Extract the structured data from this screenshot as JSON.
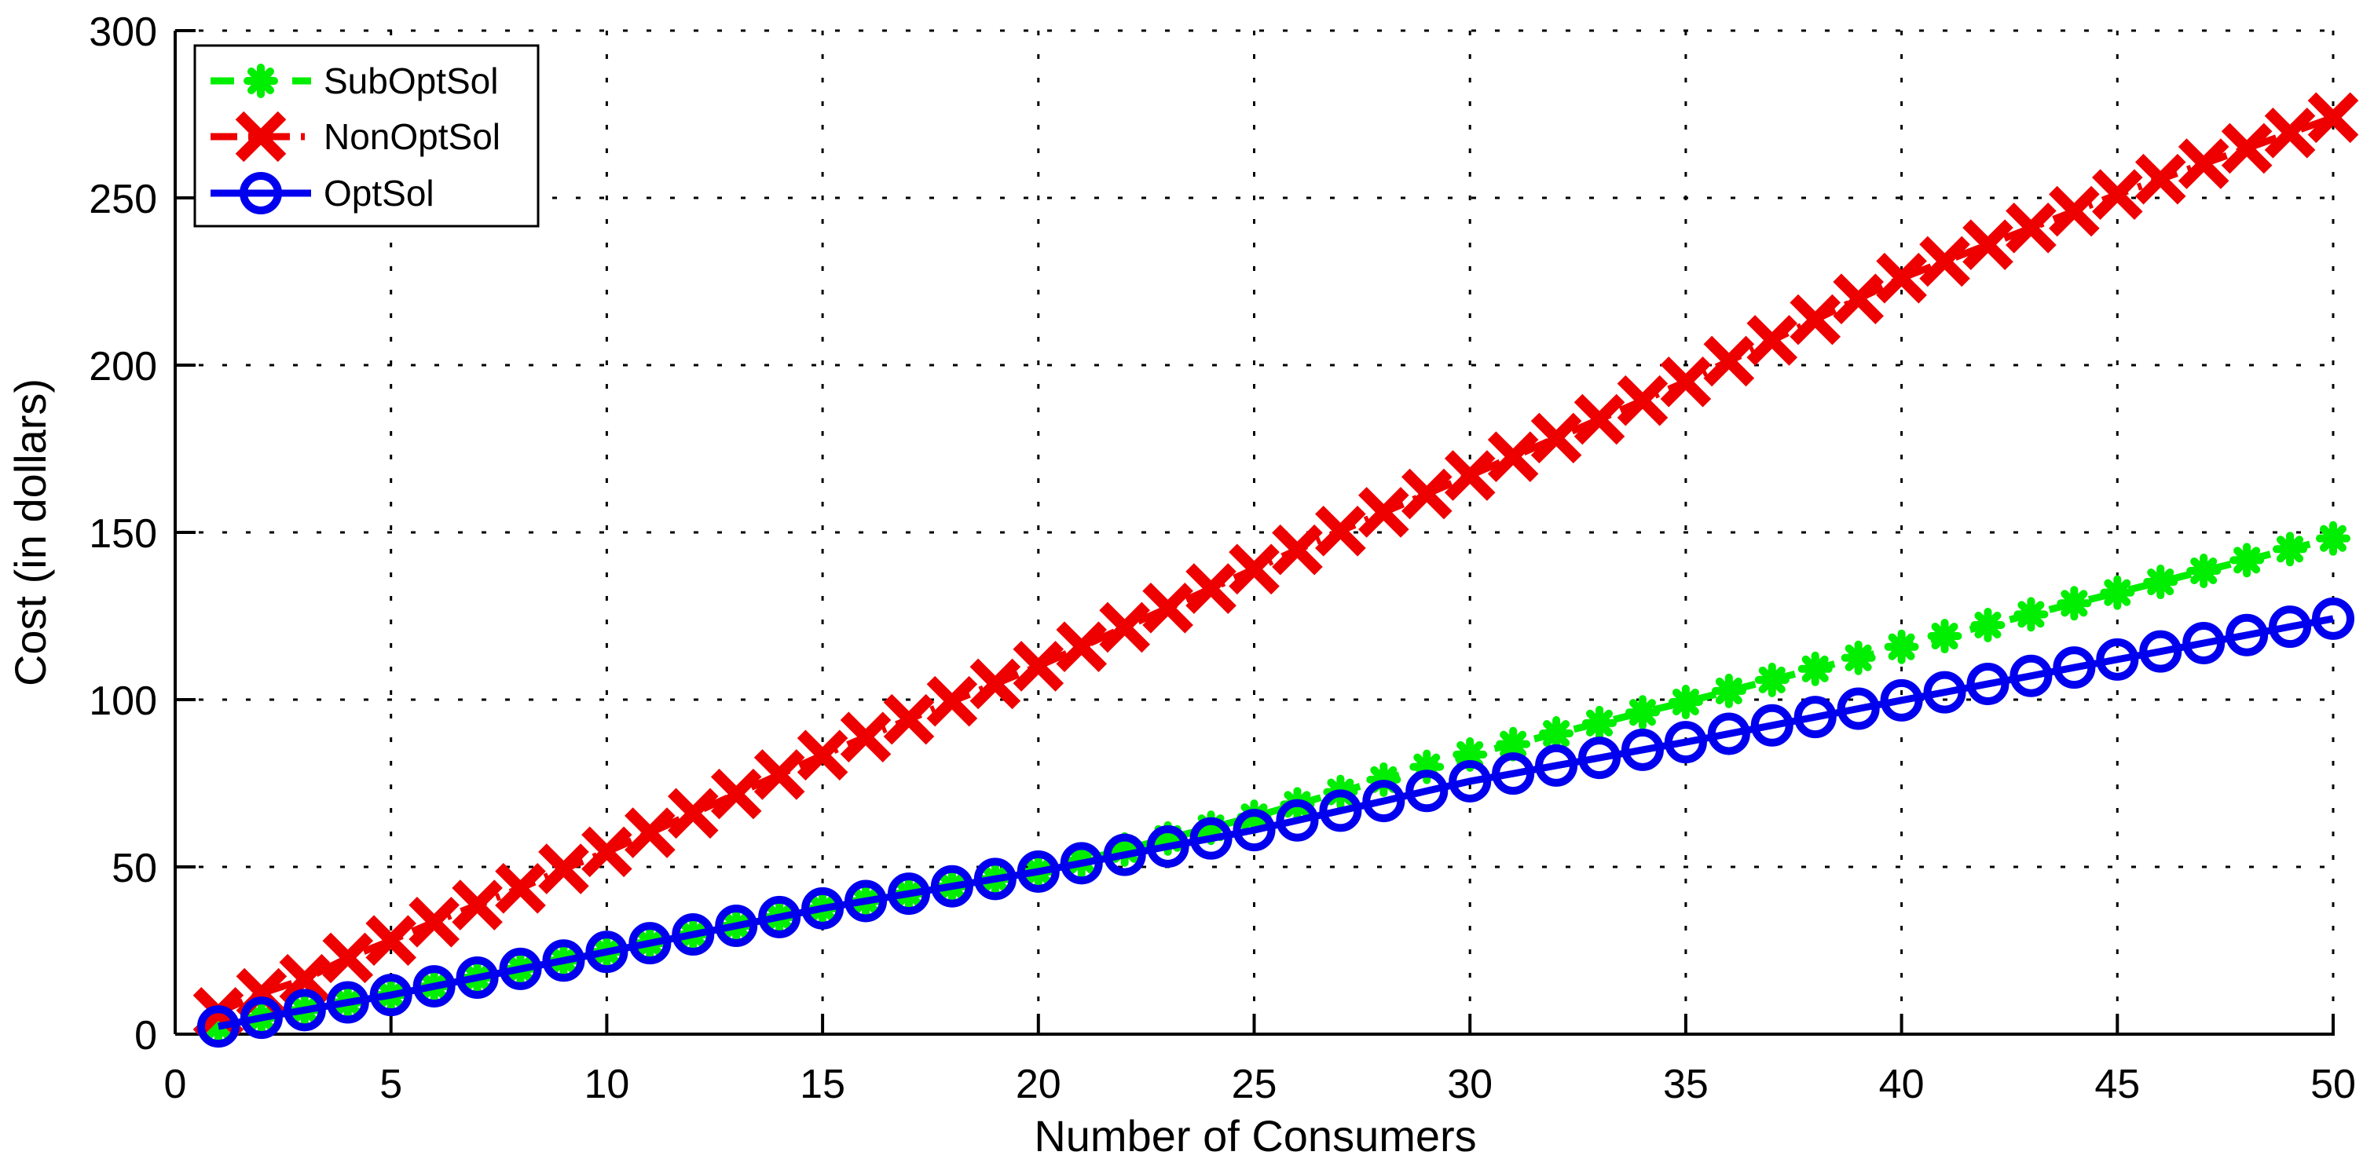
{
  "figure": {
    "background": "#ffffff",
    "axis_color": "#000000",
    "grid_color": "#000000"
  },
  "chart_data": {
    "type": "line",
    "title": "",
    "xlabel": "Number of Consumers",
    "ylabel": "Cost (in dollars)",
    "xlim": [
      0,
      50
    ],
    "ylim": [
      0,
      300
    ],
    "xticks": [
      0,
      5,
      10,
      15,
      20,
      25,
      30,
      35,
      40,
      45,
      50
    ],
    "yticks": [
      0,
      50,
      100,
      150,
      200,
      250,
      300
    ],
    "grid": true,
    "grid_style": "dotted",
    "legend_position": "top-left",
    "x": [
      1,
      2,
      3,
      4,
      5,
      6,
      7,
      8,
      9,
      10,
      11,
      12,
      13,
      14,
      15,
      16,
      17,
      18,
      19,
      20,
      21,
      22,
      23,
      24,
      25,
      26,
      27,
      28,
      29,
      30,
      31,
      32,
      33,
      34,
      35,
      36,
      37,
      38,
      39,
      40,
      41,
      42,
      43,
      44,
      45,
      46,
      47,
      48,
      49,
      50
    ],
    "series": [
      {
        "name": "SubOptSol",
        "color": "#00ee00",
        "line_style": "dashed",
        "marker": "asterisk",
        "values": [
          2.3,
          4.9,
          7.2,
          9.5,
          11.7,
          14.3,
          16.9,
          19.5,
          22.0,
          24.6,
          27.2,
          29.8,
          32.4,
          35.0,
          37.6,
          39.8,
          42.0,
          44.2,
          46.4,
          48.6,
          51.9,
          55.2,
          58.5,
          61.7,
          65.0,
          68.7,
          72.4,
          76.1,
          79.9,
          83.6,
          86.7,
          89.9,
          93.0,
          96.2,
          99.3,
          102.6,
          105.9,
          109.2,
          112.5,
          115.8,
          119.0,
          122.3,
          125.5,
          128.8,
          132.0,
          135.2,
          138.5,
          141.7,
          145.0,
          148.2
        ]
      },
      {
        "name": "NonOptSol",
        "color": "#ee0000",
        "line_style": "dashdot",
        "marker": "x",
        "values": [
          6.5,
          12.2,
          16.4,
          22.8,
          28.0,
          33.5,
          38.6,
          43.6,
          49.4,
          54.5,
          60.2,
          66.0,
          71.8,
          77.6,
          83.4,
          88.8,
          94.1,
          99.5,
          104.7,
          110.0,
          115.8,
          121.6,
          127.4,
          133.2,
          139.0,
          144.8,
          150.4,
          156.0,
          161.5,
          167.0,
          172.6,
          178.2,
          183.8,
          189.4,
          195.0,
          201.2,
          207.4,
          213.6,
          219.8,
          226.0,
          231.0,
          236.0,
          241.0,
          246.0,
          251.0,
          255.6,
          260.2,
          264.8,
          269.4,
          274.0
        ]
      },
      {
        "name": "OptSol",
        "color": "#0000ee",
        "line_style": "solid",
        "marker": "circle",
        "values": [
          2.3,
          4.9,
          7.2,
          9.5,
          11.7,
          14.3,
          16.9,
          19.5,
          22.0,
          24.6,
          27.2,
          29.8,
          32.4,
          35.0,
          37.6,
          39.8,
          42.0,
          44.2,
          46.4,
          48.6,
          51.1,
          53.6,
          56.1,
          58.5,
          61.0,
          63.9,
          66.8,
          69.7,
          72.7,
          75.6,
          77.9,
          80.3,
          82.6,
          85.0,
          87.3,
          89.8,
          92.3,
          94.8,
          97.3,
          99.8,
          102.2,
          104.7,
          107.1,
          109.6,
          112.0,
          114.4,
          116.9,
          119.3,
          121.8,
          124.2
        ]
      }
    ]
  },
  "legend": {
    "entries": [
      "SubOptSol",
      "NonOptSol",
      "OptSol"
    ]
  }
}
